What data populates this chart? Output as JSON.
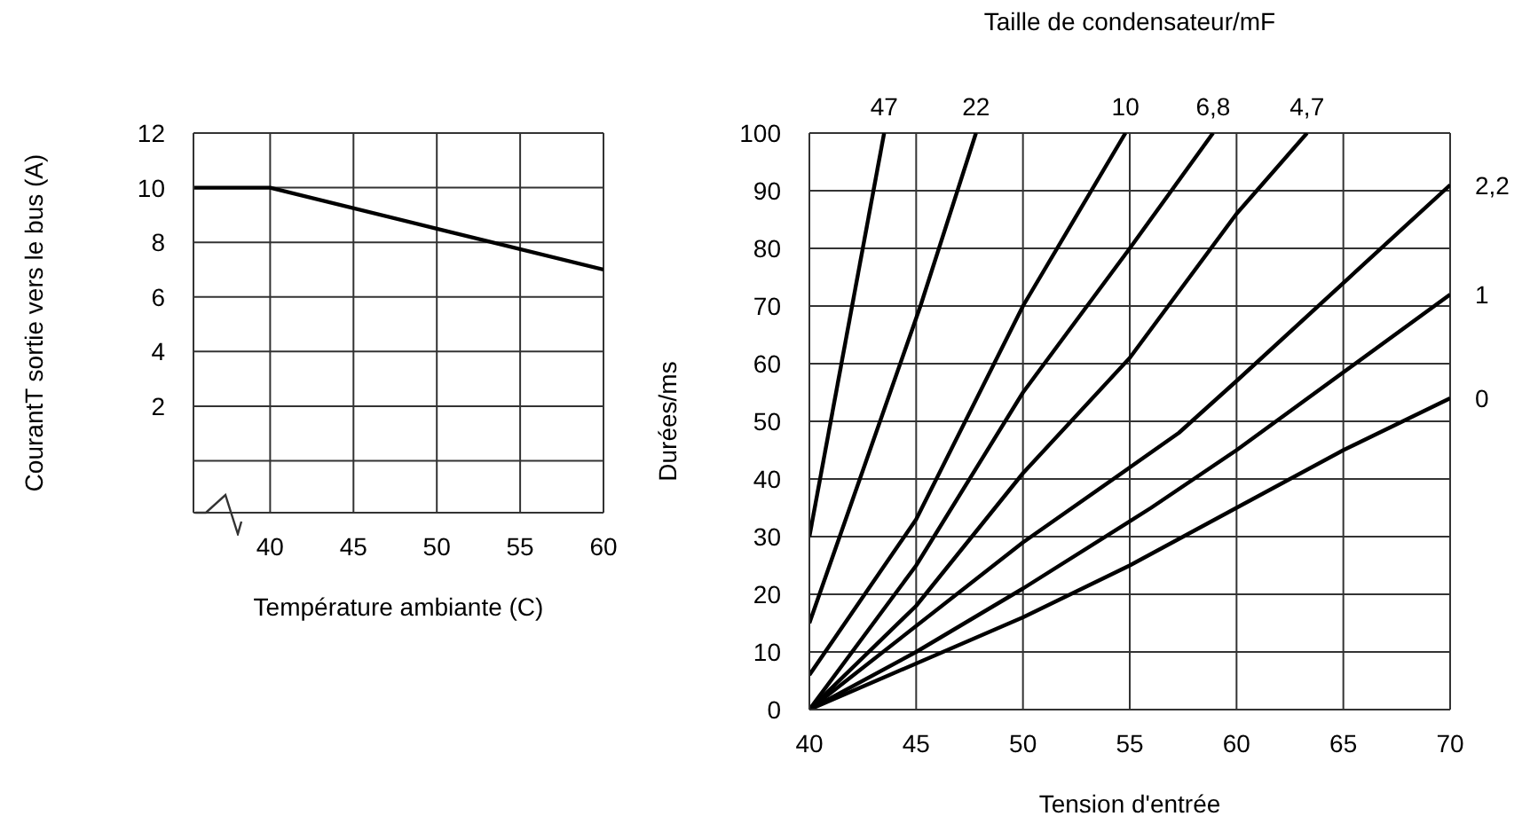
{
  "chart_data": [
    {
      "type": "line",
      "xlabel": "Température ambiante (C)",
      "ylabel": "CourantT sortie vers le bus (A)",
      "xlim": [
        35.4,
        60
      ],
      "ylim": [
        -1.9,
        12
      ],
      "xticks": [
        40,
        45,
        50,
        55,
        60
      ],
      "yticks": [
        {
          "value": 0,
          "label": null
        },
        2,
        4,
        6,
        8,
        10,
        12
      ],
      "grid": true,
      "marker": "none",
      "line_style": "solid",
      "series": [
        {
          "color": "#000000",
          "x": [
            35.4,
            40,
            50,
            60
          ],
          "values": [
            10,
            10,
            8.5,
            7
          ]
        }
      ]
    },
    {
      "type": "line",
      "legend_title": "Taille de condensateur/mF",
      "xlabel": "Tension d'entrée",
      "ylabel": "Durées/ms",
      "xlim": [
        40,
        70
      ],
      "ylim": [
        0,
        100
      ],
      "xticks": [
        40,
        45,
        50,
        55,
        60,
        65,
        70
      ],
      "yticks": [
        0,
        10,
        20,
        30,
        40,
        50,
        60,
        70,
        80,
        90,
        100
      ],
      "grid": true,
      "marker": "none",
      "line_style": "solid",
      "series": [
        {
          "name": "47",
          "color": "#000000",
          "x": [
            40,
            43.5
          ],
          "values": [
            30,
            100
          ]
        },
        {
          "name": "22",
          "color": "#000000",
          "x": [
            40,
            45.2,
            47.8
          ],
          "values": [
            15,
            70,
            100
          ]
        },
        {
          "name": "10",
          "color": "#000000",
          "x": [
            40,
            45,
            50,
            54.8
          ],
          "values": [
            6,
            33,
            70,
            100
          ]
        },
        {
          "name": "6,8",
          "color": "#000000",
          "x": [
            40,
            45,
            50,
            55,
            58.9
          ],
          "values": [
            0,
            25,
            55,
            80,
            100
          ]
        },
        {
          "name": "4,7",
          "color": "#000000",
          "x": [
            40,
            45,
            50,
            55,
            60,
            63.3
          ],
          "values": [
            0,
            18,
            41,
            61,
            86,
            100
          ]
        },
        {
          "name": "2,2",
          "color": "#000000",
          "x": [
            40,
            50,
            55,
            57.3,
            60,
            70
          ],
          "values": [
            0,
            29,
            42,
            48,
            57,
            91
          ]
        },
        {
          "name": "1",
          "color": "#000000",
          "x": [
            40,
            45,
            50,
            56,
            60,
            70
          ],
          "values": [
            0,
            10,
            21,
            35,
            45,
            72
          ]
        },
        {
          "name": "0",
          "color": "#000000",
          "x": [
            40,
            50,
            55,
            60,
            65,
            70
          ],
          "values": [
            0,
            16,
            25,
            35,
            45,
            54
          ]
        }
      ]
    }
  ]
}
